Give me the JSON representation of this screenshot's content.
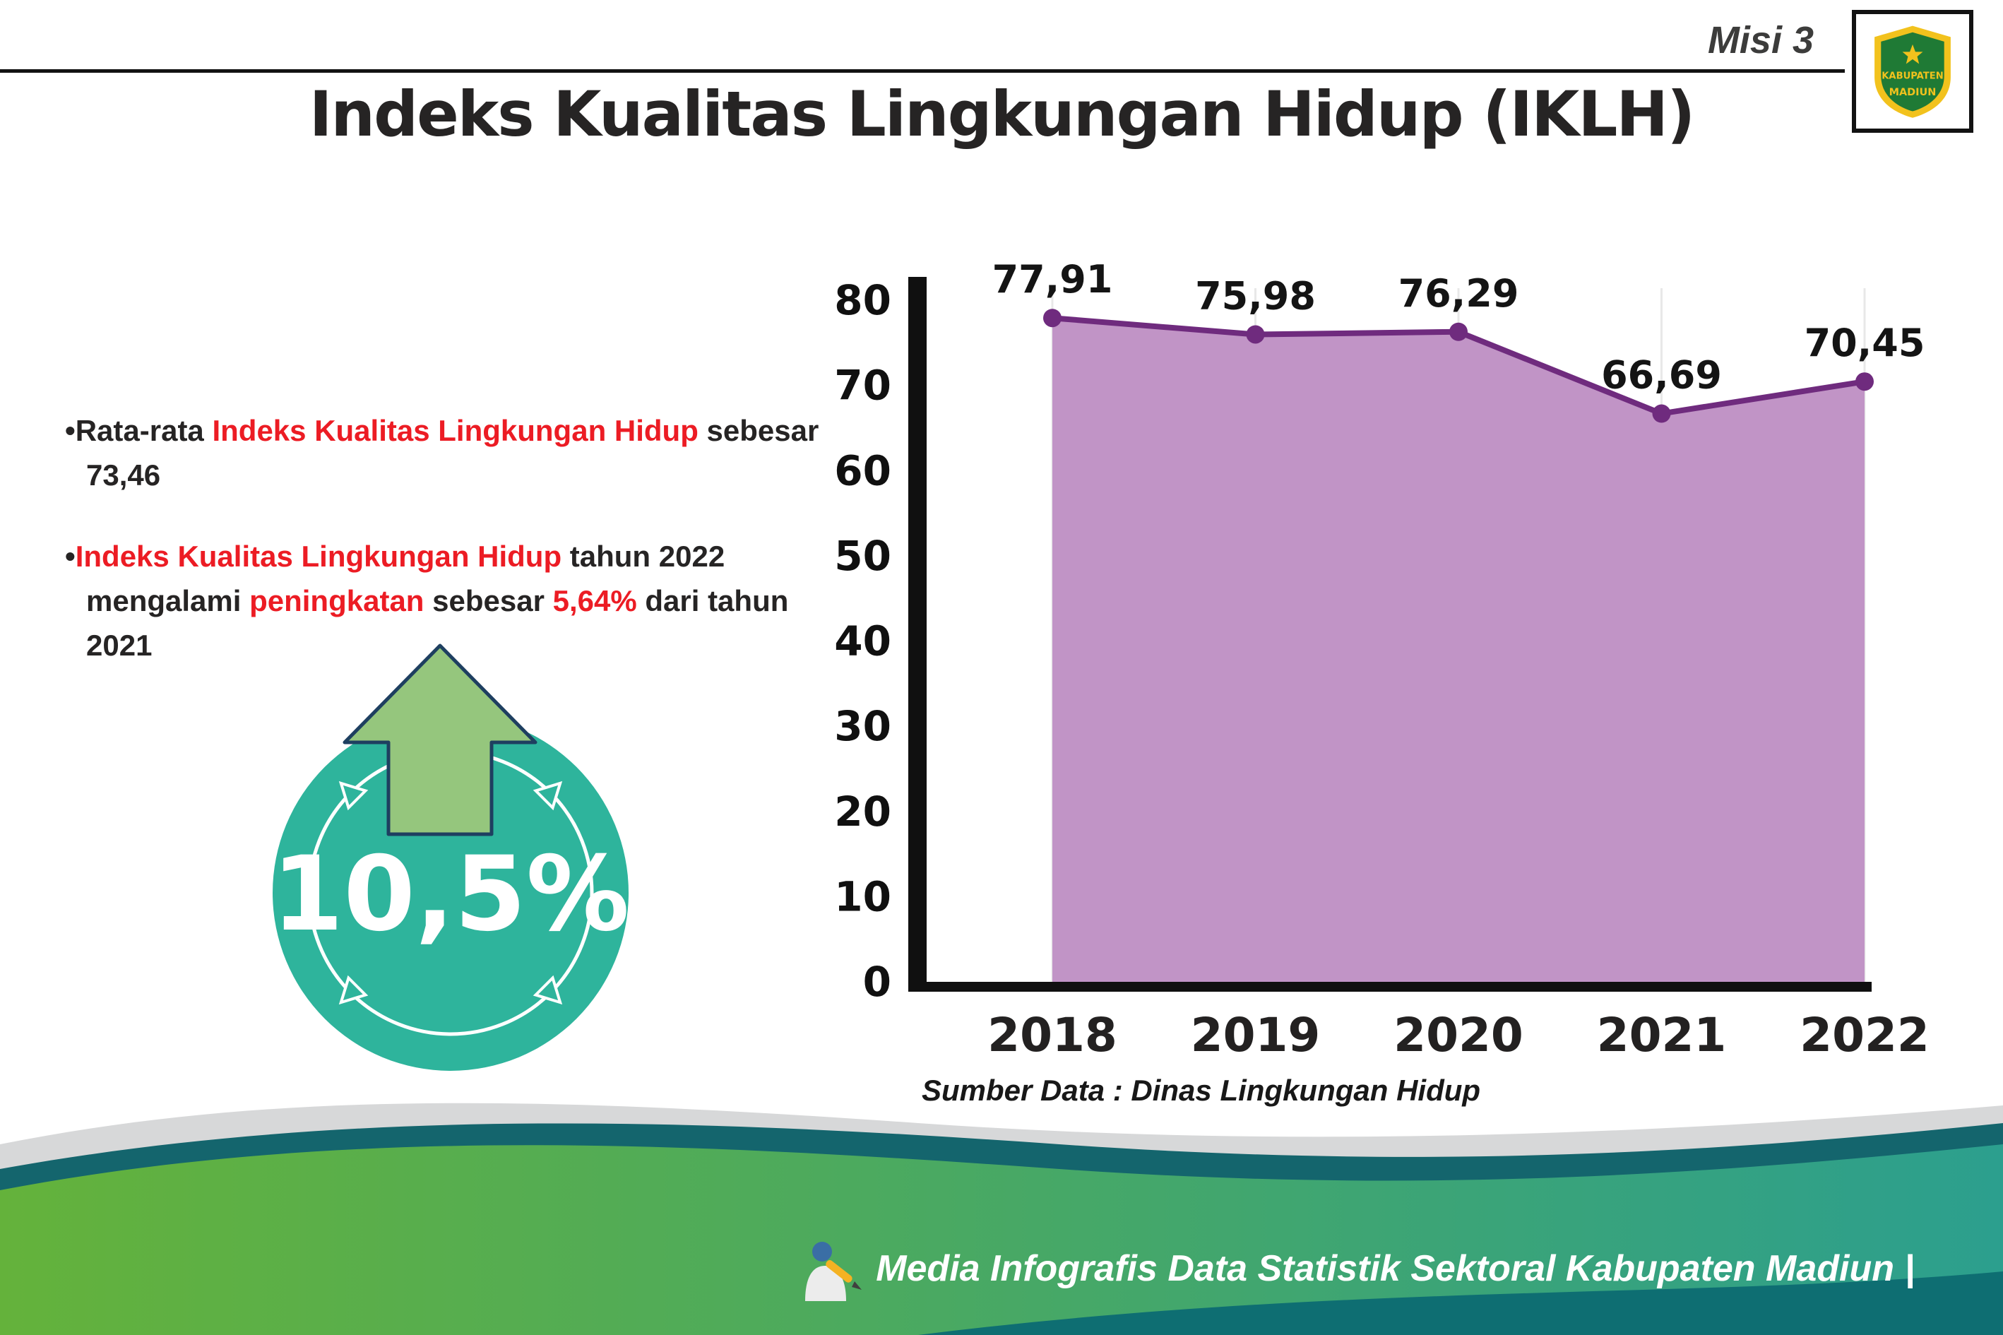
{
  "header": {
    "misi": "Misi 3",
    "title": "Indeks Kualitas Lingkungan Hidup (IKLH)"
  },
  "logo": {
    "line1": "KABUPATEN",
    "line2": "MADIUN"
  },
  "bullet1": {
    "part1": "Rata-rata ",
    "highlight1": "Indeks Kualitas Lingkungan Hidup",
    "part2": " sebesar 73,46"
  },
  "bullet2": {
    "highlight1": "Indeks Kualitas Lingkungan Hidup",
    "part1": " tahun 2022 mengalami ",
    "highlight2": "peningkatan",
    "part2": " sebesar ",
    "highlight3": "5,64%",
    "part3": " dari tahun 2021"
  },
  "badge": {
    "value": "10,5%"
  },
  "chart_data": {
    "type": "area",
    "title": "Indeks Kualitas Lingkungan Hidup (IKLH)",
    "categories": [
      "2018",
      "2019",
      "2020",
      "2021",
      "2022"
    ],
    "values": [
      77.91,
      75.98,
      76.29,
      66.69,
      70.45
    ],
    "value_labels": [
      "77,91",
      "75,98",
      "76,29",
      "66,69",
      "70,45"
    ],
    "ylim": [
      0,
      80
    ],
    "ytick_step": 10,
    "xlabel": "",
    "ylabel": "",
    "legend": "none",
    "grid": "vertical-light",
    "fill_color": "#c194c6",
    "line_color": "#6f2b7e"
  },
  "source": "Sumber Data : Dinas Lingkungan Hidup",
  "footer": {
    "text": "Media Infografis Data Statistik Sektoral Kabupaten Madiun |"
  },
  "colors": {
    "accent_red": "#ec1c24",
    "badge_teal": "#2eb49c",
    "arrow_green": "#95c67d",
    "footer_green": "#64b23b",
    "footer_teal": "#2c9f8e"
  }
}
